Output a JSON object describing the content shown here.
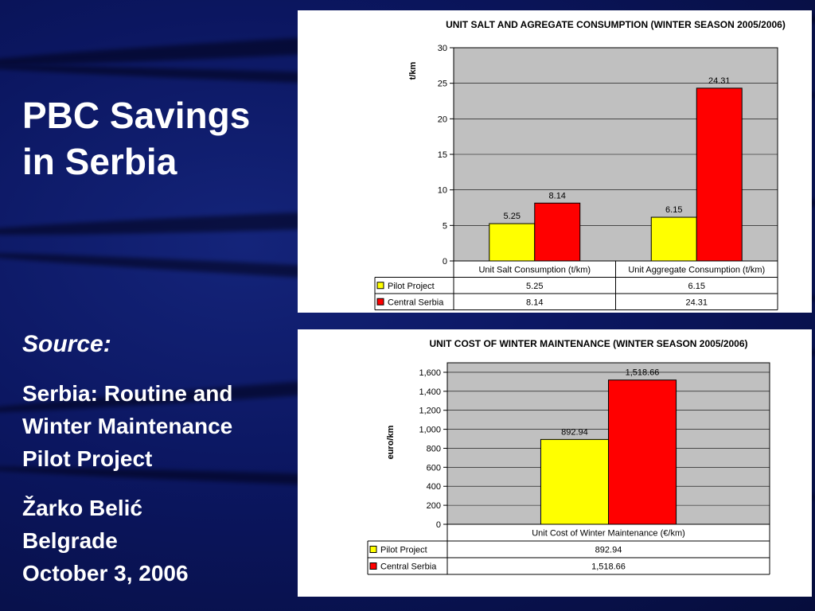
{
  "slide": {
    "title_lines": [
      "PBC Savings",
      "in Serbia"
    ],
    "source_label": "Source:",
    "source_lines": [
      "Serbia: Routine and",
      "Winter Maintenance",
      "Pilot Project"
    ],
    "author_lines": [
      "Žarko Belić",
      "Belgrade",
      "October 3, 2006"
    ]
  },
  "colors": {
    "pilot": "#ffff00",
    "central": "#ff0000",
    "plot_bg": "#c0c0c0"
  },
  "chart_data": [
    {
      "type": "bar",
      "title": "UNIT SALT AND AGREGATE CONSUMPTION (WINTER SEASON 2005/2006)",
      "ylabel": "t/km",
      "xlabel": "",
      "ylim": [
        0,
        30
      ],
      "yticks": [
        0,
        5,
        10,
        15,
        20,
        25,
        30
      ],
      "ytick_labels": [
        "0",
        "5",
        "10",
        "15",
        "20",
        "25",
        "30"
      ],
      "categories": [
        "Unit Salt Consumption (t/km)",
        "Unit Aggregate Consumption (t/km)"
      ],
      "series": [
        {
          "name": "Pilot Project",
          "values": [
            5.25,
            6.15
          ],
          "labels": [
            "5.25",
            "6.15"
          ]
        },
        {
          "name": "Central Serbia",
          "values": [
            8.14,
            24.31
          ],
          "labels": [
            "8.14",
            "24.31"
          ]
        }
      ],
      "grid": true,
      "legend": "data-table"
    },
    {
      "type": "bar",
      "title": "UNIT COST OF WINTER MAINTENANCE (WINTER SEASON 2005/2006)",
      "ylabel": "euro/km",
      "xlabel": "",
      "ylim": [
        0,
        1700
      ],
      "yticks": [
        0,
        200,
        400,
        600,
        800,
        1000,
        1200,
        1400,
        1600
      ],
      "ytick_labels": [
        "0",
        "200",
        "400",
        "600",
        "800",
        "1,000",
        "1,200",
        "1,400",
        "1,600"
      ],
      "categories": [
        "Unit Cost of Winter Maintenance (€/km)"
      ],
      "series": [
        {
          "name": "Pilot Project",
          "values": [
            892.94
          ],
          "labels": [
            "892.94"
          ]
        },
        {
          "name": "Central Serbia",
          "values": [
            1518.66
          ],
          "labels": [
            "1,518.66"
          ]
        }
      ],
      "grid": true,
      "legend": "data-table"
    }
  ]
}
